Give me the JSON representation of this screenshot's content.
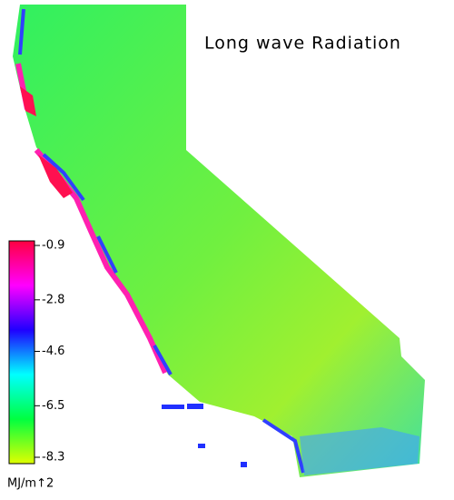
{
  "title": "Long wave Radiation",
  "colorbar": {
    "ticks": [
      -0.9,
      -2.8,
      -4.6,
      -6.5,
      -8.3
    ],
    "unit": "MJ/m↑2",
    "colors": [
      "#ff0040",
      "#ff00ff",
      "#2000ff",
      "#00ffff",
      "#00ff40",
      "#e0ff00"
    ]
  }
}
